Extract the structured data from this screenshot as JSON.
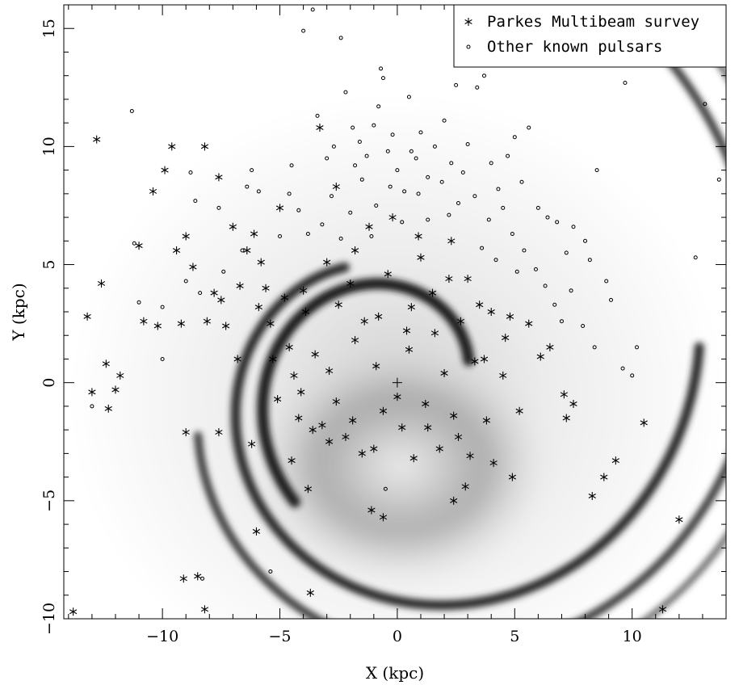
{
  "chart_data": {
    "type": "scatter",
    "title": "",
    "xlabel": "X (kpc)",
    "ylabel": "Y (kpc)",
    "xlim": [
      -14.2,
      14.0
    ],
    "ylim": [
      -10.0,
      16.0
    ],
    "grid": false,
    "legend_position": "top-right",
    "x_ticks": [
      -10,
      -5,
      0,
      5,
      10
    ],
    "x_tick_labels": [
      "−10",
      "−5",
      "0",
      "5",
      "10"
    ],
    "y_ticks": [
      -10,
      -5,
      0,
      5,
      10,
      15
    ],
    "y_tick_labels": [
      "−10",
      "−5",
      "0",
      "5",
      "10",
      "15"
    ],
    "background": "grayscale density model of Galactic spiral arms",
    "center_marker": [
      0,
      0
    ],
    "series": [
      {
        "name": "Parkes Multibeam survey",
        "marker": "asterisk",
        "color": "#000000",
        "points": [
          [
            -13.8,
            -9.7
          ],
          [
            -12.8,
            10.3
          ],
          [
            -12.6,
            4.2
          ],
          [
            -13.2,
            2.8
          ],
          [
            -12.4,
            0.8
          ],
          [
            -12.0,
            -0.3
          ],
          [
            -12.3,
            -1.1
          ],
          [
            -11.8,
            0.3
          ],
          [
            -13.0,
            -0.4
          ],
          [
            -11.0,
            5.8
          ],
          [
            -10.8,
            2.6
          ],
          [
            -10.4,
            8.1
          ],
          [
            -10.2,
            2.4
          ],
          [
            -9.9,
            9.0
          ],
          [
            -9.6,
            10.0
          ],
          [
            -9.4,
            5.6
          ],
          [
            -9.2,
            2.5
          ],
          [
            -9.0,
            -2.1
          ],
          [
            -9.0,
            6.2
          ],
          [
            -8.7,
            4.9
          ],
          [
            -8.2,
            10.0
          ],
          [
            -8.1,
            2.6
          ],
          [
            -7.8,
            3.8
          ],
          [
            -7.6,
            8.7
          ],
          [
            -7.6,
            -2.1
          ],
          [
            -7.5,
            3.5
          ],
          [
            -7.3,
            2.4
          ],
          [
            -6.8,
            1.0
          ],
          [
            -6.4,
            5.6
          ],
          [
            -6.1,
            6.3
          ],
          [
            -5.9,
            3.2
          ],
          [
            -5.6,
            4.0
          ],
          [
            -5.4,
            2.5
          ],
          [
            -5.0,
            7.4
          ],
          [
            -4.8,
            3.6
          ],
          [
            -4.6,
            1.5
          ],
          [
            -4.4,
            0.3
          ],
          [
            -4.2,
            -1.5
          ],
          [
            -3.9,
            3.0
          ],
          [
            -3.8,
            -4.5
          ],
          [
            -3.5,
            1.2
          ],
          [
            -3.2,
            -1.8
          ],
          [
            -3.0,
            5.1
          ],
          [
            -2.9,
            -2.5
          ],
          [
            -2.6,
            -0.8
          ],
          [
            -2.2,
            -2.3
          ],
          [
            -2.0,
            4.2
          ],
          [
            -1.8,
            1.8
          ],
          [
            -1.5,
            -3.0
          ],
          [
            -1.2,
            6.6
          ],
          [
            -1.0,
            -2.8
          ],
          [
            -0.8,
            2.8
          ],
          [
            -0.6,
            -1.2
          ],
          [
            -0.4,
            4.6
          ],
          [
            0.2,
            -1.9
          ],
          [
            0.5,
            1.4
          ],
          [
            0.7,
            -3.2
          ],
          [
            1.0,
            5.3
          ],
          [
            1.2,
            -0.9
          ],
          [
            1.5,
            3.8
          ],
          [
            1.8,
            -2.8
          ],
          [
            2.0,
            0.4
          ],
          [
            2.2,
            4.4
          ],
          [
            2.4,
            -1.4
          ],
          [
            2.7,
            2.6
          ],
          [
            2.9,
            -4.4
          ],
          [
            3.1,
            -3.1
          ],
          [
            3.3,
            0.9
          ],
          [
            3.5,
            3.3
          ],
          [
            3.8,
            -1.6
          ],
          [
            4.1,
            -3.4
          ],
          [
            4.5,
            0.3
          ],
          [
            4.8,
            2.8
          ],
          [
            5.2,
            -1.2
          ],
          [
            5.6,
            2.5
          ],
          [
            6.1,
            1.1
          ],
          [
            6.5,
            1.5
          ],
          [
            7.1,
            -0.5
          ],
          [
            7.2,
            -1.5
          ],
          [
            7.5,
            -0.9
          ],
          [
            8.3,
            -4.8
          ],
          [
            8.8,
            -4.0
          ],
          [
            9.3,
            -3.3
          ],
          [
            10.5,
            -1.7
          ],
          [
            11.3,
            -9.6
          ],
          [
            12.0,
            -5.8
          ],
          [
            -8.5,
            -8.2
          ],
          [
            -9.1,
            -8.3
          ],
          [
            -8.2,
            -9.6
          ],
          [
            -3.7,
            -8.9
          ],
          [
            -6.0,
            -6.3
          ],
          [
            -6.2,
            -2.6
          ],
          [
            -1.1,
            -5.4
          ],
          [
            -0.6,
            -5.7
          ],
          [
            2.4,
            -5.0
          ],
          [
            4.9,
            -4.0
          ],
          [
            -4.5,
            -3.3
          ],
          [
            -3.3,
            10.8
          ],
          [
            -2.6,
            8.3
          ],
          [
            -1.8,
            5.6
          ],
          [
            -0.2,
            7.0
          ],
          [
            0.9,
            6.2
          ],
          [
            2.3,
            6.0
          ],
          [
            3.0,
            4.4
          ],
          [
            4.0,
            3.0
          ],
          [
            4.6,
            1.9
          ],
          [
            -6.7,
            4.1
          ],
          [
            -7.0,
            6.6
          ],
          [
            -5.8,
            5.1
          ],
          [
            -4.0,
            3.9
          ],
          [
            -2.5,
            3.3
          ],
          [
            -1.4,
            2.6
          ],
          [
            0.6,
            3.2
          ],
          [
            1.6,
            2.1
          ],
          [
            3.7,
            1.0
          ],
          [
            -0.9,
            0.7
          ],
          [
            -2.9,
            0.5
          ],
          [
            -4.1,
            -0.4
          ],
          [
            -5.1,
            -0.7
          ],
          [
            -3.6,
            -2.0
          ],
          [
            -1.9,
            -1.6
          ],
          [
            0.0,
            -0.6
          ],
          [
            1.3,
            -1.9
          ],
          [
            2.6,
            -2.3
          ],
          [
            0.4,
            2.2
          ],
          [
            -5.3,
            1.0
          ]
        ]
      },
      {
        "name": "Other known pulsars",
        "marker": "circle",
        "color": "#000000",
        "points": [
          [
            -13.0,
            -1.0
          ],
          [
            -11.3,
            11.5
          ],
          [
            -11.2,
            5.9
          ],
          [
            -11.0,
            3.4
          ],
          [
            -10.0,
            3.2
          ],
          [
            -10.0,
            1.0
          ],
          [
            -9.0,
            4.3
          ],
          [
            -8.8,
            8.9
          ],
          [
            -8.6,
            7.7
          ],
          [
            -8.4,
            3.8
          ],
          [
            -8.3,
            -8.3
          ],
          [
            -7.6,
            7.4
          ],
          [
            -7.4,
            4.7
          ],
          [
            -6.6,
            5.6
          ],
          [
            -6.4,
            8.3
          ],
          [
            -6.2,
            9.0
          ],
          [
            -5.9,
            8.1
          ],
          [
            -5.4,
            -8.0
          ],
          [
            -5.0,
            6.2
          ],
          [
            -4.5,
            9.2
          ],
          [
            -4.0,
            14.9
          ],
          [
            -3.6,
            15.8
          ],
          [
            -3.4,
            11.3
          ],
          [
            -3.0,
            9.5
          ],
          [
            -2.4,
            14.6
          ],
          [
            -2.2,
            12.3
          ],
          [
            -1.9,
            10.8
          ],
          [
            -1.6,
            10.2
          ],
          [
            -1.3,
            9.6
          ],
          [
            -1.0,
            10.9
          ],
          [
            -0.8,
            11.7
          ],
          [
            -0.7,
            13.3
          ],
          [
            -0.6,
            12.9
          ],
          [
            -0.4,
            9.8
          ],
          [
            -0.2,
            10.5
          ],
          [
            0.0,
            9.0
          ],
          [
            0.3,
            8.1
          ],
          [
            0.5,
            12.1
          ],
          [
            0.8,
            9.5
          ],
          [
            1.0,
            10.6
          ],
          [
            1.3,
            8.7
          ],
          [
            1.6,
            10.0
          ],
          [
            2.0,
            11.1
          ],
          [
            2.3,
            9.3
          ],
          [
            2.5,
            12.6
          ],
          [
            2.8,
            8.9
          ],
          [
            3.0,
            10.1
          ],
          [
            3.4,
            12.5
          ],
          [
            3.7,
            13.0
          ],
          [
            4.0,
            9.3
          ],
          [
            4.3,
            8.2
          ],
          [
            4.7,
            9.6
          ],
          [
            5.0,
            10.4
          ],
          [
            5.3,
            8.5
          ],
          [
            5.6,
            10.8
          ],
          [
            6.0,
            7.4
          ],
          [
            6.4,
            7.0
          ],
          [
            6.8,
            6.8
          ],
          [
            7.2,
            5.5
          ],
          [
            7.5,
            6.6
          ],
          [
            8.0,
            6.0
          ],
          [
            8.2,
            5.2
          ],
          [
            8.5,
            9.0
          ],
          [
            8.9,
            4.3
          ],
          [
            9.1,
            3.5
          ],
          [
            9.7,
            12.7
          ],
          [
            9.6,
            0.6
          ],
          [
            10.0,
            0.3
          ],
          [
            10.2,
            1.5
          ],
          [
            12.7,
            5.3
          ],
          [
            13.1,
            11.8
          ],
          [
            13.7,
            8.6
          ],
          [
            -0.5,
            -4.5
          ],
          [
            -3.2,
            6.7
          ],
          [
            -2.8,
            7.9
          ],
          [
            -2.0,
            7.2
          ],
          [
            -1.5,
            8.6
          ],
          [
            -0.9,
            7.5
          ],
          [
            0.6,
            9.8
          ],
          [
            1.9,
            8.5
          ],
          [
            2.6,
            7.6
          ],
          [
            3.3,
            7.9
          ],
          [
            3.9,
            6.9
          ],
          [
            4.5,
            7.4
          ],
          [
            4.9,
            6.3
          ],
          [
            5.4,
            5.6
          ],
          [
            5.9,
            4.8
          ],
          [
            6.3,
            4.1
          ],
          [
            6.7,
            3.3
          ],
          [
            7.0,
            2.6
          ],
          [
            7.4,
            3.9
          ],
          [
            7.9,
            2.4
          ],
          [
            8.4,
            1.5
          ],
          [
            -4.6,
            8.0
          ],
          [
            -4.2,
            7.3
          ],
          [
            -3.8,
            6.3
          ],
          [
            -2.4,
            6.1
          ],
          [
            -1.1,
            6.2
          ],
          [
            0.2,
            6.8
          ],
          [
            1.3,
            6.9
          ],
          [
            2.2,
            7.1
          ],
          [
            3.6,
            5.7
          ],
          [
            4.2,
            5.2
          ],
          [
            5.1,
            4.7
          ],
          [
            -0.3,
            8.3
          ],
          [
            0.9,
            8.0
          ],
          [
            -1.8,
            9.2
          ],
          [
            -2.7,
            10.0
          ]
        ]
      }
    ]
  }
}
